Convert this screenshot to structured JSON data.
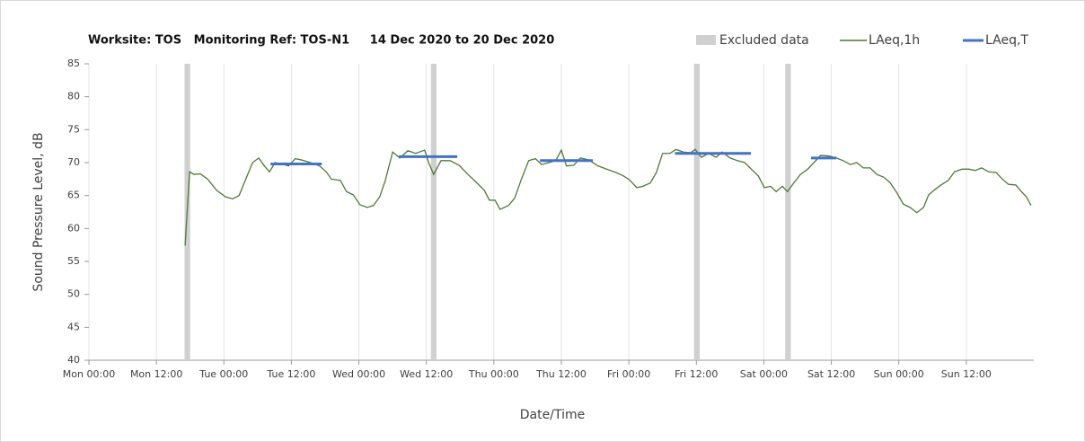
{
  "chart_data": {
    "type": "line",
    "title": "Worksite: TOS   Monitoring Ref: TOS-N1     14 Dec 2020 to 20 Dec 2020",
    "xlabel": "Date/Time",
    "ylabel": "Sound Pressure Level, dB",
    "xlim": [
      0,
      168
    ],
    "ylim": [
      40,
      85
    ],
    "yticks": [
      40,
      45,
      50,
      55,
      60,
      65,
      70,
      75,
      80,
      85
    ],
    "xticks": [
      {
        "value": 0,
        "label": "Mon 00:00"
      },
      {
        "value": 12,
        "label": "Mon 12:00"
      },
      {
        "value": 24,
        "label": "Tue 00:00"
      },
      {
        "value": 36,
        "label": "Tue 12:00"
      },
      {
        "value": 48,
        "label": "Wed 00:00"
      },
      {
        "value": 60,
        "label": "Wed 12:00"
      },
      {
        "value": 72,
        "label": "Thu 00:00"
      },
      {
        "value": 84,
        "label": "Thu 12:00"
      },
      {
        "value": 96,
        "label": "Fri 00:00"
      },
      {
        "value": 108,
        "label": "Fri 12:00"
      },
      {
        "value": 120,
        "label": "Sat 00:00"
      },
      {
        "value": 132,
        "label": "Sat 12:00"
      },
      {
        "value": 144,
        "label": "Sun 00:00"
      },
      {
        "value": 156,
        "label": "Sun 12:00"
      }
    ],
    "grid": "x",
    "excluded": {
      "name": "Excluded data",
      "color": "#d0d0d0",
      "ranges": [
        [
          17,
          18
        ],
        [
          60.8,
          61.8
        ],
        [
          107.6,
          108.6
        ],
        [
          123.8,
          124.8
        ]
      ]
    },
    "series": [
      {
        "name": "LAeq,1h",
        "color": "#4f7a35",
        "x": [
          17.1,
          17.9,
          18.7,
          19.8,
          21.1,
          22.7,
          24.3,
          25.6,
          26.7,
          27.8,
          29.1,
          30.2,
          31.1,
          32.1,
          33.1,
          34.2,
          35.5,
          36.7,
          37.8,
          39.4,
          41.0,
          42.2,
          43.1,
          44.7,
          45.8,
          47.0,
          48.2,
          49.5,
          50.6,
          51.7,
          52.7,
          54.0,
          55.3,
          56.7,
          58.1,
          59.7,
          60.4,
          61.3,
          62.6,
          64.2,
          65.8,
          67.4,
          69.0,
          70.3,
          71.2,
          72.2,
          73.1,
          74.6,
          75.7,
          76.9,
          78.2,
          79.4,
          80.5,
          81.8,
          83.0,
          84.0,
          84.9,
          86.2,
          87.4,
          88.9,
          90.5,
          92.1,
          93.7,
          95.0,
          96.1,
          97.4,
          98.5,
          99.8,
          100.9,
          102.0,
          103.3,
          104.4,
          105.7,
          107.0,
          107.8,
          108.9,
          110.2,
          111.5,
          112.6,
          114.0,
          115.3,
          116.6,
          117.9,
          119.0,
          120.1,
          121.2,
          122.2,
          123.3,
          124.2,
          125.4,
          126.5,
          127.8,
          128.9,
          130.1,
          131.6,
          132.9,
          134.1,
          135.4,
          136.5,
          137.7,
          138.9,
          140.1,
          141.3,
          142.4,
          143.6,
          144.8,
          146.0,
          147.2,
          148.4,
          149.3,
          150.4,
          151.5,
          152.8,
          153.9,
          155.2,
          156.5,
          157.6,
          158.7,
          160.0,
          161.3,
          162.4,
          163.5,
          164.8,
          165.9,
          166.7,
          167.5
        ],
        "values": [
          57.4,
          68.6,
          68.2,
          68.3,
          67.5,
          65.8,
          64.8,
          64.5,
          65,
          67.3,
          70,
          70.7,
          69.6,
          68.6,
          70,
          69.8,
          69.5,
          70.6,
          70.4,
          70,
          69.5,
          68.6,
          67.5,
          67.3,
          65.6,
          65.1,
          63.6,
          63.2,
          63.5,
          64.8,
          67.3,
          71.6,
          70.7,
          71.8,
          71.4,
          71.9,
          70,
          68.2,
          70.3,
          70.3,
          69.6,
          68.2,
          66.9,
          65.8,
          64.3,
          64.3,
          62.9,
          63.5,
          64.6,
          67.5,
          70.3,
          70.6,
          69.7,
          70,
          70.3,
          71.9,
          69.5,
          69.6,
          70.7,
          70.4,
          69.5,
          69,
          68.5,
          68,
          67.4,
          66.2,
          66.4,
          66.9,
          68.5,
          71.4,
          71.4,
          72,
          71.6,
          71.5,
          72,
          70.8,
          71.4,
          70.8,
          71.6,
          70.7,
          70.3,
          70,
          68.9,
          68,
          66.2,
          66.4,
          65.6,
          66.4,
          65.6,
          67,
          68.2,
          69,
          70,
          71.1,
          71,
          70.7,
          70.3,
          69.7,
          70,
          69.2,
          69.2,
          68.2,
          67.8,
          67,
          65.5,
          63.7,
          63.2,
          62.4,
          63.2,
          65.1,
          65.9,
          66.6,
          67.3,
          68.6,
          69,
          69,
          68.8,
          69.2,
          68.6,
          68.5,
          67.5,
          66.7,
          66.6,
          65.5,
          64.8,
          63.5
        ]
      },
      {
        "name": "LAeq,T",
        "color": "#4472c4",
        "segments": [
          {
            "x": [
              32.3,
              41.4
            ],
            "value": 69.8
          },
          {
            "x": [
              55.1,
              65.5
            ],
            "value": 70.9
          },
          {
            "x": [
              80.2,
              89.6
            ],
            "value": 70.3
          },
          {
            "x": [
              104.2,
              117.7
            ],
            "value": 71.4
          },
          {
            "x": [
              128.4,
              132.9
            ],
            "value": 70.7
          }
        ]
      }
    ]
  }
}
